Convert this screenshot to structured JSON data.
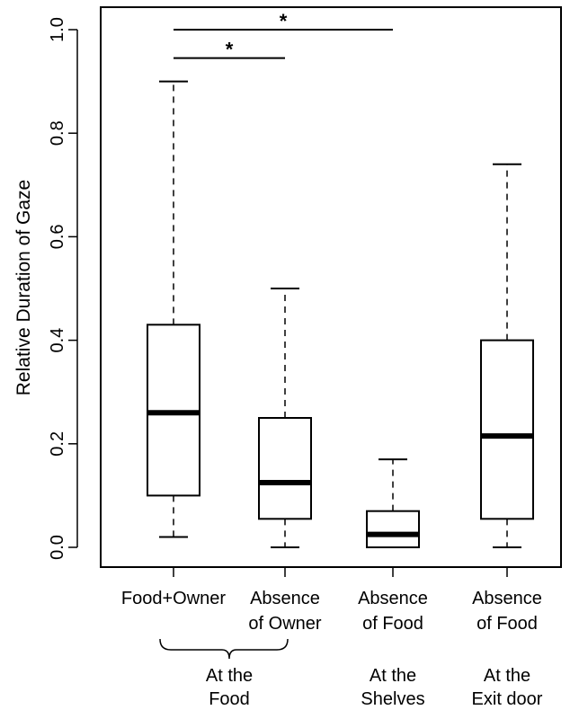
{
  "chart_data": {
    "type": "box",
    "ylabel": "Relative Duration of Gaze",
    "ylim": [
      0,
      1
    ],
    "yticks": [
      "0.0",
      "0.2",
      "0.4",
      "0.6",
      "0.8",
      "1.0"
    ],
    "categories": [
      {
        "line1": "Food+Owner",
        "line2": ""
      },
      {
        "line1": "Absence",
        "line2": "of Owner"
      },
      {
        "line1": "Absence",
        "line2": "of Food"
      },
      {
        "line1": "Absence",
        "line2": "of Food"
      }
    ],
    "boxes": [
      {
        "min": 0.02,
        "q1": 0.1,
        "median": 0.26,
        "q3": 0.43,
        "max": 0.9
      },
      {
        "min": 0.0,
        "q1": 0.055,
        "median": 0.125,
        "q3": 0.25,
        "max": 0.5
      },
      {
        "min": 0.0,
        "q1": 0.0,
        "median": 0.025,
        "q3": 0.07,
        "max": 0.17
      },
      {
        "min": 0.0,
        "q1": 0.055,
        "median": 0.215,
        "q3": 0.4,
        "max": 0.74
      }
    ],
    "groups": [
      {
        "line1": "At the",
        "line2": "Food",
        "from": 0,
        "to": 1
      },
      {
        "line1": "At the",
        "line2": "Shelves",
        "from": 2,
        "to": 2
      },
      {
        "line1": "At the",
        "line2": "Exit door",
        "from": 3,
        "to": 3
      }
    ],
    "significance": [
      {
        "from": 0,
        "to": 2,
        "y": 1.0,
        "label": "*"
      },
      {
        "from": 0,
        "to": 1,
        "y": 0.945,
        "label": "*"
      }
    ]
  }
}
